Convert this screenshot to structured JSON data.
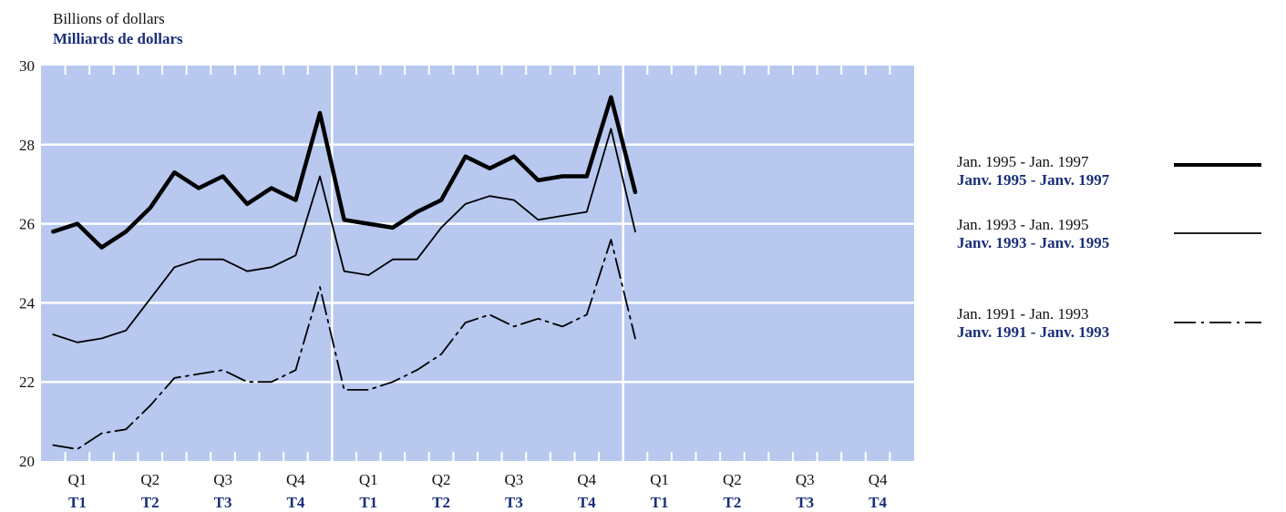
{
  "y_axis_label": {
    "en": "Billions of dollars",
    "fr": "Milliards de dollars"
  },
  "colors": {
    "plot_background": "#b8c8ef",
    "grid": "#ffffff",
    "text": "#111111",
    "french_text": "#1a2f7a",
    "series": "#000000"
  },
  "chart_data": {
    "type": "line",
    "ylim": [
      20,
      30
    ],
    "y_ticks": [
      "20",
      "22",
      "24",
      "26",
      "28",
      "30"
    ],
    "grid": true,
    "legend_placement": "right",
    "quarter_labels_en": [
      "Q1",
      "Q2",
      "Q3",
      "Q4",
      "Q1",
      "Q2",
      "Q3",
      "Q4",
      "Q1",
      "Q2",
      "Q3",
      "Q4"
    ],
    "quarter_labels_fr": [
      "T1",
      "T2",
      "T3",
      "T4",
      "T1",
      "T2",
      "T3",
      "T4",
      "T1",
      "T2",
      "T3",
      "T4"
    ],
    "x_months": [
      1,
      2,
      3,
      4,
      5,
      6,
      7,
      8,
      9,
      10,
      11,
      12,
      13,
      14,
      15,
      16,
      17,
      18,
      19,
      20,
      21,
      22,
      23,
      24,
      25
    ],
    "series": [
      {
        "name": "Jan. 1995 - Jan. 1997",
        "name_fr": "Janv. 1995 - Janv. 1997",
        "style": "thick",
        "values": [
          25.8,
          26.0,
          25.4,
          25.8,
          26.4,
          27.3,
          26.9,
          27.2,
          26.5,
          26.9,
          26.6,
          28.8,
          26.1,
          26.0,
          25.9,
          26.3,
          26.6,
          27.7,
          27.4,
          27.7,
          27.1,
          27.2,
          27.2,
          29.2,
          26.8
        ]
      },
      {
        "name": "Jan. 1993 - Jan. 1995",
        "name_fr": "Janv. 1993 - Janv. 1995",
        "style": "solid",
        "values": [
          23.2,
          23.0,
          23.1,
          23.3,
          24.1,
          24.9,
          25.1,
          25.1,
          24.8,
          24.9,
          25.2,
          27.2,
          24.8,
          24.7,
          25.1,
          25.1,
          25.9,
          26.5,
          26.7,
          26.6,
          26.1,
          26.2,
          26.3,
          28.4,
          25.8
        ]
      },
      {
        "name": "Jan. 1991 - Jan. 1993",
        "name_fr": "Janv. 1991 - Janv. 1993",
        "style": "dashdot",
        "values": [
          20.4,
          20.3,
          20.7,
          20.8,
          21.4,
          22.1,
          22.2,
          22.3,
          22.0,
          22.0,
          22.3,
          24.4,
          21.8,
          21.8,
          22.0,
          22.3,
          22.7,
          23.5,
          23.7,
          23.4,
          23.6,
          23.4,
          23.7,
          25.6,
          23.1
        ]
      }
    ]
  }
}
